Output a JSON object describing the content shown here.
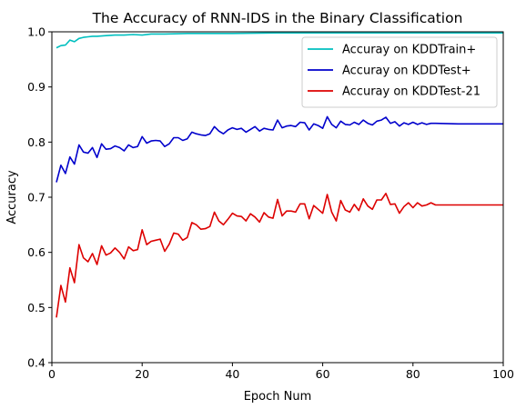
{
  "chart_data": {
    "type": "line",
    "title": "The Accuracy of RNN-IDS  in the Binary Classification",
    "xlabel": "Epoch Num",
    "ylabel": "Accuracy",
    "xlim": [
      0,
      100
    ],
    "ylim": [
      0.4,
      1.0
    ],
    "xticks": [
      0,
      20,
      40,
      60,
      80,
      100
    ],
    "yticks": [
      0.4,
      0.5,
      0.6,
      0.7,
      0.8,
      0.9,
      1.0
    ],
    "xtick_labels": [
      "0",
      "20",
      "40",
      "60",
      "80",
      "100"
    ],
    "ytick_labels": [
      "0.4",
      "0.5",
      "0.6",
      "0.7",
      "0.8",
      "0.9",
      "1.0"
    ],
    "grid": false,
    "legend_position": "top-right",
    "series": [
      {
        "name": "Accuray on KDDTrain+",
        "color": "#00bfbf",
        "x": [
          1,
          2,
          3,
          4,
          5,
          6,
          7,
          8,
          9,
          10,
          12,
          14,
          16,
          18,
          20,
          22,
          25,
          30,
          35,
          40,
          50,
          60,
          70,
          80,
          90,
          100
        ],
        "y": [
          0.971,
          0.975,
          0.976,
          0.985,
          0.982,
          0.988,
          0.99,
          0.991,
          0.992,
          0.992,
          0.993,
          0.994,
          0.994,
          0.995,
          0.994,
          0.996,
          0.996,
          0.997,
          0.997,
          0.997,
          0.998,
          0.998,
          0.998,
          0.998,
          0.998,
          0.998
        ]
      },
      {
        "name": "Accuray on KDDTest+",
        "color": "#0000cc",
        "x": [
          1,
          2,
          3,
          4,
          5,
          6,
          7,
          8,
          9,
          10,
          11,
          12,
          13,
          14,
          15,
          16,
          17,
          18,
          19,
          20,
          21,
          22,
          23,
          24,
          25,
          26,
          27,
          28,
          29,
          30,
          31,
          32,
          33,
          34,
          35,
          36,
          37,
          38,
          39,
          40,
          41,
          42,
          43,
          44,
          45,
          46,
          47,
          48,
          49,
          50,
          51,
          52,
          53,
          54,
          55,
          56,
          57,
          58,
          59,
          60,
          61,
          62,
          63,
          64,
          65,
          66,
          67,
          68,
          69,
          70,
          71,
          72,
          73,
          74,
          75,
          76,
          77,
          78,
          79,
          80,
          81,
          82,
          83,
          84,
          85,
          90,
          95,
          100
        ],
        "y": [
          0.727,
          0.758,
          0.743,
          0.773,
          0.76,
          0.795,
          0.782,
          0.78,
          0.79,
          0.772,
          0.797,
          0.787,
          0.788,
          0.793,
          0.79,
          0.784,
          0.795,
          0.79,
          0.792,
          0.81,
          0.798,
          0.802,
          0.803,
          0.802,
          0.792,
          0.797,
          0.808,
          0.808,
          0.803,
          0.806,
          0.818,
          0.815,
          0.813,
          0.812,
          0.815,
          0.828,
          0.82,
          0.815,
          0.822,
          0.826,
          0.823,
          0.825,
          0.818,
          0.823,
          0.828,
          0.82,
          0.825,
          0.823,
          0.822,
          0.84,
          0.826,
          0.829,
          0.83,
          0.828,
          0.836,
          0.835,
          0.822,
          0.833,
          0.83,
          0.825,
          0.846,
          0.832,
          0.826,
          0.838,
          0.832,
          0.831,
          0.836,
          0.832,
          0.84,
          0.834,
          0.831,
          0.838,
          0.84,
          0.845,
          0.834,
          0.837,
          0.829,
          0.835,
          0.832,
          0.836,
          0.832,
          0.835,
          0.832,
          0.834,
          0.834,
          0.833,
          0.833,
          0.833
        ]
      },
      {
        "name": "Accuray on KDDTest-21",
        "color": "#dd0000",
        "x": [
          1,
          2,
          3,
          4,
          5,
          6,
          7,
          8,
          9,
          10,
          11,
          12,
          13,
          14,
          15,
          16,
          17,
          18,
          19,
          20,
          21,
          22,
          23,
          24,
          25,
          26,
          27,
          28,
          29,
          30,
          31,
          32,
          33,
          34,
          35,
          36,
          37,
          38,
          39,
          40,
          41,
          42,
          43,
          44,
          45,
          46,
          47,
          48,
          49,
          50,
          51,
          52,
          53,
          54,
          55,
          56,
          57,
          58,
          59,
          60,
          61,
          62,
          63,
          64,
          65,
          66,
          67,
          68,
          69,
          70,
          71,
          72,
          73,
          74,
          75,
          76,
          77,
          78,
          79,
          80,
          81,
          82,
          83,
          84,
          85,
          90,
          95,
          100
        ],
        "y": [
          0.482,
          0.54,
          0.51,
          0.572,
          0.545,
          0.614,
          0.59,
          0.583,
          0.598,
          0.578,
          0.612,
          0.595,
          0.599,
          0.608,
          0.6,
          0.588,
          0.61,
          0.603,
          0.605,
          0.641,
          0.614,
          0.62,
          0.622,
          0.624,
          0.602,
          0.615,
          0.635,
          0.633,
          0.622,
          0.627,
          0.654,
          0.65,
          0.642,
          0.643,
          0.647,
          0.673,
          0.657,
          0.65,
          0.66,
          0.671,
          0.666,
          0.665,
          0.657,
          0.67,
          0.664,
          0.655,
          0.672,
          0.664,
          0.662,
          0.696,
          0.666,
          0.675,
          0.675,
          0.673,
          0.688,
          0.688,
          0.661,
          0.685,
          0.678,
          0.671,
          0.705,
          0.673,
          0.657,
          0.694,
          0.677,
          0.673,
          0.687,
          0.676,
          0.697,
          0.684,
          0.678,
          0.695,
          0.695,
          0.707,
          0.687,
          0.688,
          0.671,
          0.683,
          0.69,
          0.681,
          0.69,
          0.684,
          0.686,
          0.69,
          0.686,
          0.686,
          0.686,
          0.686
        ]
      }
    ]
  }
}
